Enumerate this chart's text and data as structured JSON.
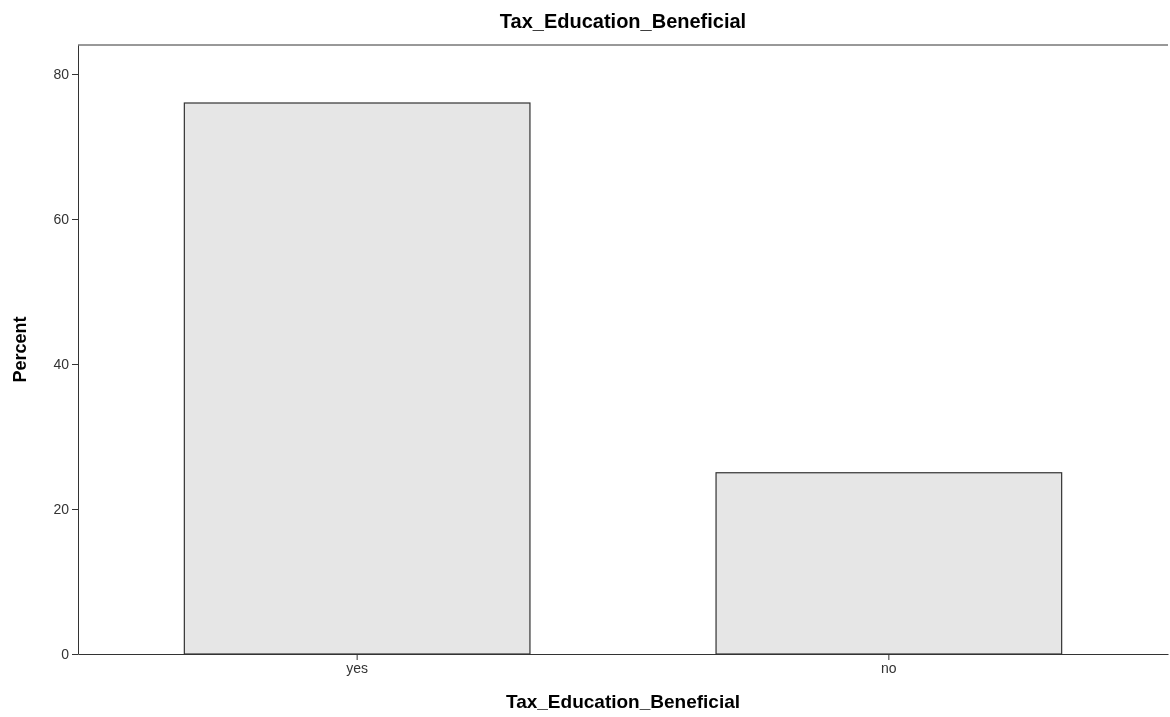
{
  "chart_data": {
    "type": "bar",
    "title": "Tax_Education_Beneficial",
    "xlabel": "Tax_Education_Beneficial",
    "ylabel": "Percent",
    "categories": [
      "yes",
      "no"
    ],
    "values": [
      76,
      25
    ],
    "color": "#e6e6e6",
    "ylim": [
      0,
      84
    ],
    "yticks": [
      0,
      20,
      40,
      60,
      80
    ],
    "grid": false
  }
}
